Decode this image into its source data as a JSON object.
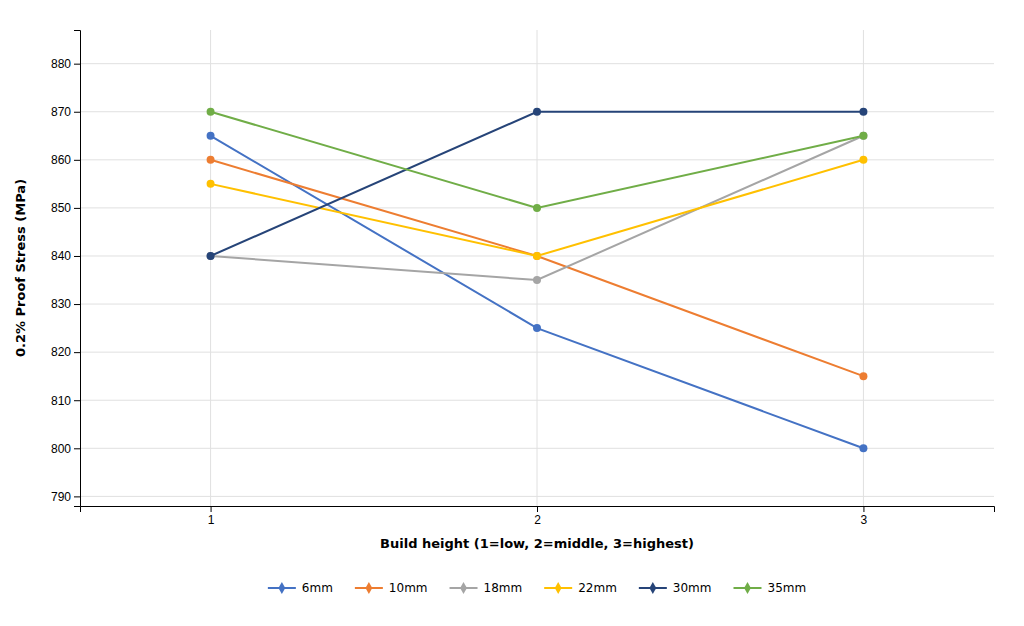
{
  "chart_data": {
    "type": "line",
    "x_label": "Build height (1=low, 2=middle, 3=highest)",
    "y_label": "0.2% Proof Stress (MPa)",
    "x": [
      1,
      2,
      3
    ],
    "series": [
      {
        "name": "6mm",
        "color": "#4472C4",
        "values": [
          865,
          825,
          800
        ]
      },
      {
        "name": "10mm",
        "color": "#ED7D31",
        "values": [
          860,
          840,
          815
        ]
      },
      {
        "name": "18mm",
        "color": "#A5A5A5",
        "values": [
          840,
          835,
          865
        ]
      },
      {
        "name": "22mm",
        "color": "#FFC000",
        "values": [
          855,
          840,
          860
        ]
      },
      {
        "name": "30mm",
        "color": "#264478",
        "values": [
          840,
          870,
          870
        ]
      },
      {
        "name": "35mm",
        "color": "#70AD47",
        "values": [
          870,
          850,
          865
        ]
      }
    ],
    "xlim": [
      0.6,
      3.4
    ],
    "xticks": [
      1,
      2,
      3
    ],
    "ylim": [
      788,
      887
    ],
    "yticks": [
      790,
      800,
      810,
      820,
      830,
      840,
      850,
      860,
      870,
      880
    ],
    "grid": true,
    "legend": "bottom",
    "marker": "circle"
  }
}
